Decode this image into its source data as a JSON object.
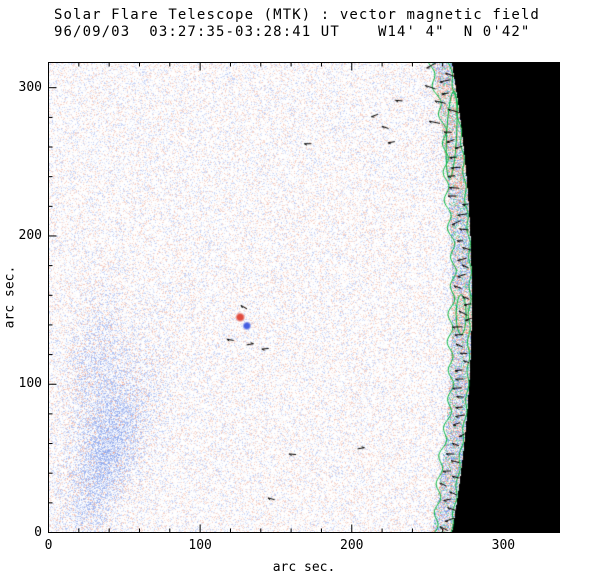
{
  "chart_data": {
    "type": "heatmap",
    "title": "Solar Flare Telescope (MTK) : vector magnetic field",
    "subtitle": "96/09/03  03:27:35-03:28:41 UT    W14' 4\"  N 0'42\"",
    "xlabel": "arc sec.",
    "ylabel": "arc sec.",
    "xlim": [
      0,
      337
    ],
    "ylim": [
      0,
      317
    ],
    "xticks": [
      "0",
      "100",
      "200",
      "300"
    ],
    "yticks": [
      "0",
      "100",
      "200",
      "300"
    ],
    "xtick_values": [
      0,
      100,
      200,
      300
    ],
    "ytick_values": [
      0,
      100,
      200,
      300
    ],
    "minor_tick_step": 20,
    "grid": false,
    "legend": "none",
    "colors": {
      "background": "#ffffff",
      "positive_polarity_red": "#e2604a",
      "negative_polarity_blue": "#5a6fd8",
      "contour_green": "#00b43c",
      "off_limb_sky": "#000000",
      "axis": "#000000"
    },
    "content": {
      "description": "Speckled line-of-sight vector magnetogram of the quiet Sun near the west limb. Black region at right is off-limb sky. A narrow band of strong mixed-polarity field with green contours and black field-vector arrows runs along the curved solar limb. A diffuse negative (blue) patch sits in the lower-left; a small bipole (red/blue pair) sits near disk center of the frame.",
      "solar_limb": {
        "circle_center_x": -681,
        "circle_center_y": 158,
        "radius": 960
      },
      "limb_band_width": 13,
      "noise": {
        "base_density": 0.4,
        "base_amplitude": 0.5
      },
      "blue_patch": {
        "x": 40,
        "y": 55,
        "sigma_major": 42,
        "sigma_minor": 14,
        "tilt_deg": 20,
        "strength": 0.5
      },
      "blue_patch2": {
        "x": 30,
        "y": 115,
        "sigma_major": 30,
        "sigma_minor": 12,
        "tilt_deg": 10,
        "strength": 0.28
      },
      "bipole": {
        "red_spot": {
          "x": 126.5,
          "y": 145.2,
          "radius": 3.4
        },
        "blue_spot": {
          "x": 130.9,
          "y": 139.4,
          "radius": 3.1
        }
      },
      "band_red_segments": [
        [
          232,
          302
        ],
        [
          133,
          162
        ]
      ],
      "field_marks": [
        [
          120,
          130,
          170
        ],
        [
          133,
          127,
          10
        ],
        [
          143,
          124,
          185
        ],
        [
          129,
          152,
          150
        ],
        [
          215,
          281,
          200
        ],
        [
          222,
          273,
          160
        ],
        [
          226,
          263,
          190
        ],
        [
          231,
          291,
          175
        ],
        [
          161,
          53,
          175
        ],
        [
          147,
          23,
          165
        ],
        [
          206,
          57,
          10
        ],
        [
          171,
          262,
          180
        ]
      ]
    }
  }
}
